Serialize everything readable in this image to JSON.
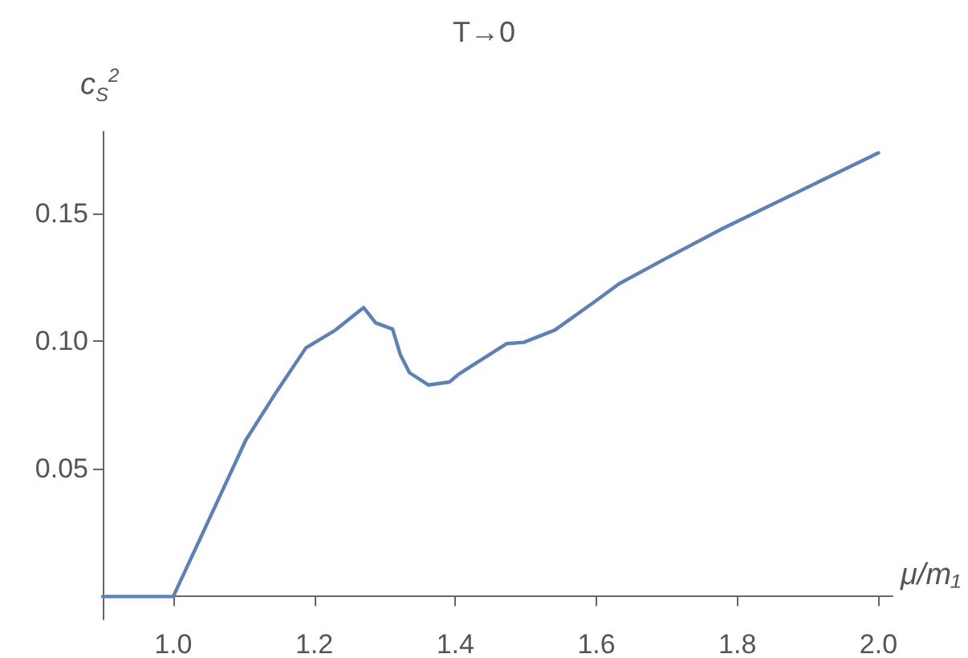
{
  "chart_data": {
    "type": "line",
    "title": "T→0",
    "xlabel": "μ/m₁",
    "ylabel": "c$_{S}$$^{2}$",
    "xlim": [
      0.9,
      2.02
    ],
    "ylim": [
      -0.009,
      0.182
    ],
    "xticks": [
      {
        "value": 1,
        "label": "1.0"
      },
      1.2,
      1.4,
      1.6,
      1.8,
      {
        "value": 2,
        "label": "2.0"
      }
    ],
    "yticks": [
      0.05,
      {
        "value": 0.1,
        "label": "0.10"
      },
      0.15
    ],
    "grid": false,
    "marker": "none",
    "line_style": "solid",
    "series": [
      {
        "color": "#5e81b5",
        "x": [
          0.9,
          1.0,
          1.051,
          1.103,
          1.147,
          1.188,
          1.23,
          1.27,
          1.287,
          1.311,
          1.322,
          1.335,
          1.362,
          1.392,
          1.405,
          1.473,
          1.497,
          1.541,
          1.594,
          1.632,
          1.699,
          1.778,
          2.0
        ],
        "values": [
          0,
          0,
          0.0303,
          0.0613,
          0.0804,
          0.0973,
          0.1043,
          0.1131,
          0.1071,
          0.1047,
          0.0947,
          0.0876,
          0.0828,
          0.084,
          0.0871,
          0.099,
          0.0995,
          0.1043,
          0.1147,
          0.1224,
          0.1324,
          0.1439,
          0.1737
        ]
      }
    ]
  }
}
